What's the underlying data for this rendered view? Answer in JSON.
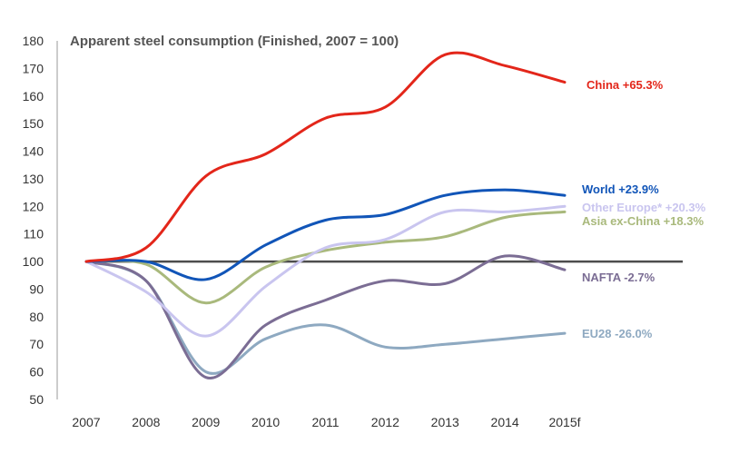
{
  "chart_data": {
    "type": "line",
    "title": "Apparent steel consumption (Finished, 2007 = 100)",
    "xlabel": "",
    "ylabel": "",
    "categories": [
      "2007",
      "2008",
      "2009",
      "2010",
      "2011",
      "2012",
      "2013",
      "2014",
      "2015f"
    ],
    "ylim": [
      50,
      180
    ],
    "yticks": [
      50,
      60,
      70,
      80,
      90,
      100,
      110,
      120,
      130,
      140,
      150,
      160,
      170,
      180
    ],
    "grid": false,
    "baseline": 100,
    "series": [
      {
        "name": "China",
        "change": "+65.3%",
        "color": "#e3261a",
        "values": [
          100,
          105,
          131,
          139,
          152,
          156,
          175,
          171,
          165
        ]
      },
      {
        "name": "World",
        "change": "+23.9%",
        "color": "#1155b8",
        "values": [
          100,
          100,
          93.5,
          106,
          115,
          117,
          124,
          126,
          124
        ]
      },
      {
        "name": "Other Europe*",
        "change": "+20.3%",
        "color": "#c9c5ef",
        "values": [
          100,
          89,
          73,
          91,
          105,
          108,
          118,
          118,
          120
        ]
      },
      {
        "name": "Asia ex-China",
        "change": "+18.3%",
        "color": "#a9b97c",
        "values": [
          100,
          99,
          85,
          98,
          104,
          107,
          109,
          116,
          118
        ]
      },
      {
        "name": "NAFTA",
        "change": "-2.7%",
        "color": "#7b6d94",
        "values": [
          100,
          93,
          58,
          77,
          86,
          93,
          92,
          102,
          97
        ]
      },
      {
        "name": "EU28",
        "change": "-26.0%",
        "color": "#8ea9c1",
        "values": [
          100,
          93,
          60,
          72,
          77,
          69,
          70,
          72,
          74
        ]
      }
    ]
  }
}
